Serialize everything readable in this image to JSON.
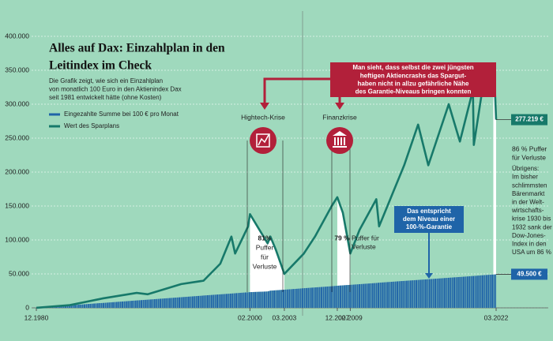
{
  "chart_data": {
    "type": "line",
    "title": [
      "Alles auf Dax: Einzahlplan in den",
      "Leitindex im Check"
    ],
    "subtitle": [
      "Die Grafik zeigt, wie sich ein Einzahlplan",
      "von monatlich 100 Euro in den Aktienindex Dax",
      "seit 1981 entwickelt hätte (ohne Kosten)"
    ],
    "x": [
      "12.1980",
      "12.1983",
      "12.1986",
      "12.1989",
      "12.1990",
      "12.1993",
      "12.1995",
      "06.1997",
      "06.1998",
      "10.1998",
      "12.1999",
      "02.2000",
      "09.2001",
      "12.2001",
      "06.2002",
      "03.2003",
      "12.2004",
      "12.2005",
      "06.2007",
      "12.2007",
      "06.2008",
      "02.2009",
      "12.2009",
      "06.2010",
      "06.2011",
      "09.2011",
      "12.2012",
      "12.2013",
      "03.2015",
      "02.2016",
      "12.2017",
      "12.2018",
      "12.2019",
      "02.2020",
      "03.2020",
      "12.2020",
      "12.2021",
      "01.2022",
      "03.2022"
    ],
    "xlim": [
      "12.1980",
      "03.2022"
    ],
    "xticks": [
      "12.1980",
      "02.2000",
      "03.2003",
      "12.2007",
      "02.2009",
      "03.2022"
    ],
    "ylim": [
      0,
      400000
    ],
    "yticks": [
      0,
      {
        "value": 50000,
        "label": "50.000"
      },
      {
        "value": 100000,
        "label": "100.000"
      },
      {
        "value": 150000,
        "label": "150.000"
      },
      {
        "value": 200000,
        "label": "200.000"
      },
      {
        "value": 250000,
        "label": "250.000"
      },
      {
        "value": 300000,
        "label": "300.000"
      },
      {
        "value": 350000,
        "label": "350.000"
      },
      {
        "value": 400000,
        "label": "400.000"
      }
    ],
    "grid": true,
    "series": [
      {
        "name": "Eingezahlte Summe bei 100 € pro Monat",
        "color": "#1f64a8",
        "style": "area",
        "values": [
          100,
          3700,
          7300,
          10900,
          12100,
          15700,
          18100,
          19900,
          21100,
          21500,
          22900,
          23100,
          24100,
          25300,
          25900,
          26800,
          28900,
          30100,
          31900,
          32500,
          33100,
          33900,
          34900,
          35500,
          36700,
          37000,
          38500,
          39700,
          41200,
          42100,
          44300,
          45500,
          46700,
          46900,
          47000,
          47900,
          49100,
          49200,
          49500
        ],
        "value_labels": [
          null,
          null,
          null,
          null,
          null,
          null,
          null,
          null,
          null,
          null,
          null,
          null,
          null,
          null,
          null,
          null,
          null,
          null,
          null,
          null,
          null,
          null,
          null,
          null,
          null,
          null,
          null,
          null,
          null,
          null,
          null,
          null,
          null,
          null,
          null,
          null,
          null,
          null,
          "49.500 €"
        ]
      },
      {
        "name": "Wert des Sparplans",
        "color": "#17796a",
        "style": "line",
        "values": [
          100,
          4000,
          14000,
          22000,
          20000,
          35000,
          40000,
          65000,
          105000,
          80000,
          120000,
          138000,
          95000,
          105000,
          85000,
          50000,
          80000,
          105000,
          150000,
          163000,
          140000,
          80000,
          115000,
          130000,
          160000,
          120000,
          170000,
          210000,
          270000,
          210000,
          300000,
          245000,
          310000,
          320000,
          240000,
          320000,
          350000,
          345000,
          277219
        ],
        "value_labels": [
          null,
          null,
          null,
          null,
          null,
          null,
          null,
          null,
          null,
          null,
          null,
          null,
          null,
          null,
          null,
          null,
          null,
          null,
          null,
          null,
          null,
          null,
          null,
          null,
          null,
          null,
          null,
          null,
          null,
          null,
          null,
          null,
          null,
          null,
          null,
          null,
          null,
          null,
          "277.219 €"
        ]
      }
    ],
    "drawdowns": [
      {
        "from": "02.2000",
        "to": "03.2003"
      },
      {
        "from": "12.2007",
        "to": "02.2009"
      },
      {
        "from": "12.2021",
        "to": "03.2022"
      }
    ],
    "crises": [
      "Hightech-Krise",
      "Finanzkrise"
    ],
    "callout_red": [
      "Man sieht, dass selbst die zwei jüngsten",
      "heftigen Aktiencrashs das Spargut-",
      "haben nicht in allzu gefährliche Nähe",
      "des Garantie-Niveaus bringen konnten"
    ],
    "callout_blue": [
      "Das entspricht",
      "dem Niveau einer",
      "100-%-Garantie"
    ],
    "puffer": [
      [
        "81%",
        "Puffer",
        "für",
        "Verluste"
      ],
      [
        "79 %",
        "Puffer für",
        "Verluste"
      ],
      [
        "86 % Puffer",
        "für Verluste"
      ]
    ],
    "side_note": [
      "Übrigens:",
      "Im bisher",
      "schlimmsten",
      "Bärenmarkt",
      "in der Welt-",
      "wirtschafts-",
      "krise 1930 bis",
      "1932 sank der",
      "Dow-Jones-",
      "Index in den",
      "USA um 86 %"
    ]
  }
}
